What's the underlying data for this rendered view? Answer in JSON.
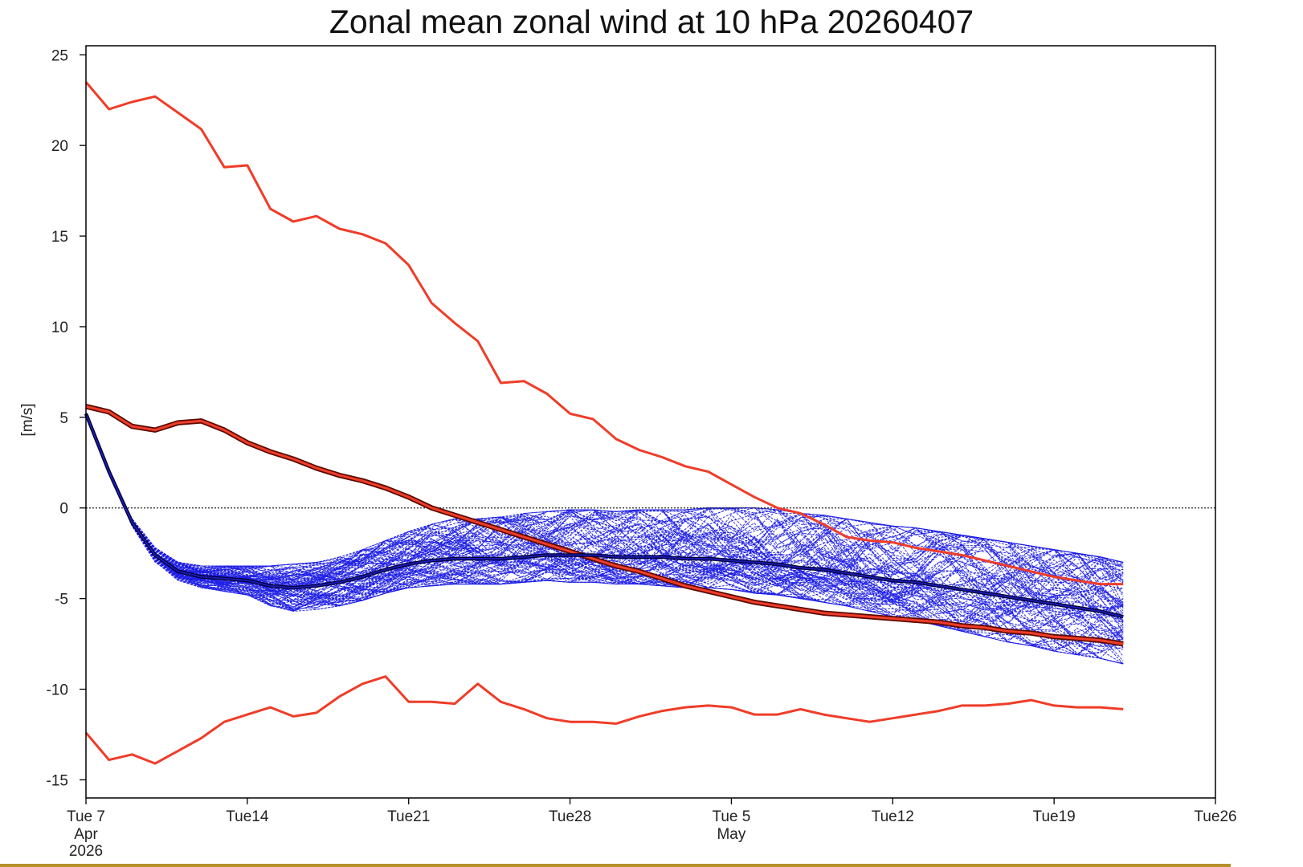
{
  "chart_data": {
    "type": "line",
    "title": "Zonal mean zonal wind at 10 hPa 20260407",
    "xlabel": "",
    "ylabel": "[m/s]",
    "ylim": [
      -16,
      25.5
    ],
    "xlim": [
      0,
      49
    ],
    "yticks": [
      25,
      20,
      15,
      10,
      5,
      0,
      -5,
      -10,
      -15
    ],
    "xticks": [
      {
        "day": 0,
        "label": "Tue 7",
        "sub1": "Apr",
        "sub2": "2026"
      },
      {
        "day": 7,
        "label": "Tue14",
        "sub1": "",
        "sub2": ""
      },
      {
        "day": 14,
        "label": "Tue21",
        "sub1": "",
        "sub2": ""
      },
      {
        "day": 21,
        "label": "Tue28",
        "sub1": "",
        "sub2": ""
      },
      {
        "day": 28,
        "label": "Tue 5",
        "sub1": "May",
        "sub2": ""
      },
      {
        "day": 35,
        "label": "Tue12",
        "sub1": "",
        "sub2": ""
      },
      {
        "day": 42,
        "label": "Tue19",
        "sub1": "",
        "sub2": ""
      },
      {
        "day": 49,
        "label": "Tue26",
        "sub1": "",
        "sub2": ""
      }
    ],
    "zero_line": 0,
    "series": [
      {
        "role": "climatology-max",
        "color": "#f03c28",
        "x": [
          0,
          1,
          2,
          3,
          4,
          5,
          6,
          7,
          8,
          9,
          10,
          11,
          12,
          13,
          14,
          15,
          16,
          17,
          18,
          19,
          20,
          21,
          22,
          23,
          24,
          25,
          26,
          27,
          28,
          29,
          30,
          31,
          32,
          33,
          34,
          35,
          36,
          37,
          38,
          39,
          40,
          41,
          42,
          43,
          44,
          45
        ],
        "values": [
          23.5,
          22,
          22.4,
          22.7,
          21.8,
          20.9,
          18.8,
          18.9,
          16.5,
          15.8,
          16.1,
          15.4,
          15.1,
          14.6,
          13.4,
          11.3,
          10.2,
          9.2,
          6.9,
          7.0,
          6.3,
          5.2,
          4.9,
          3.8,
          3.2,
          2.8,
          2.3,
          2.0,
          1.3,
          0.6,
          0.0,
          -0.3,
          -0.9,
          -1.6,
          -1.8,
          -1.9,
          -2.2,
          -2.4,
          -2.6,
          -2.9,
          -3.2,
          -3.5,
          -3.8,
          -4.0,
          -4.2,
          -4.2
        ]
      },
      {
        "role": "climatology-min",
        "color": "#f03c28",
        "x": [
          0,
          1,
          2,
          3,
          4,
          5,
          6,
          7,
          8,
          9,
          10,
          11,
          12,
          13,
          14,
          15,
          16,
          17,
          18,
          19,
          20,
          21,
          22,
          23,
          24,
          25,
          26,
          27,
          28,
          29,
          30,
          31,
          32,
          33,
          34,
          35,
          36,
          37,
          38,
          39,
          40,
          41,
          42,
          43,
          44,
          45
        ],
        "values": [
          -12.4,
          -13.9,
          -13.6,
          -14.1,
          -13.4,
          -12.7,
          -11.8,
          -11.4,
          -11.0,
          -11.5,
          -11.3,
          -10.4,
          -9.7,
          -9.3,
          -10.7,
          -10.7,
          -10.8,
          -9.7,
          -10.7,
          -11.1,
          -11.6,
          -11.8,
          -11.8,
          -11.9,
          -11.5,
          -11.2,
          -11.0,
          -10.9,
          -11.0,
          -11.4,
          -11.4,
          -11.1,
          -11.4,
          -11.6,
          -11.8,
          -11.6,
          -11.4,
          -11.2,
          -10.9,
          -10.9,
          -10.8,
          -10.6,
          -10.9,
          -11.0,
          -11.0,
          -11.1
        ]
      },
      {
        "role": "climatology-mean",
        "color": "#c81e0a",
        "x": [
          0,
          1,
          2,
          3,
          4,
          5,
          6,
          7,
          8,
          9,
          10,
          11,
          12,
          13,
          14,
          15,
          16,
          17,
          18,
          19,
          20,
          21,
          22,
          23,
          24,
          25,
          26,
          27,
          28,
          29,
          30,
          31,
          32,
          33,
          34,
          35,
          36,
          37,
          38,
          39,
          40,
          41,
          42,
          43,
          44,
          45
        ],
        "values": [
          5.6,
          5.3,
          4.5,
          4.3,
          4.7,
          4.8,
          4.3,
          3.6,
          3.1,
          2.7,
          2.2,
          1.8,
          1.5,
          1.1,
          0.6,
          0.0,
          -0.4,
          -0.8,
          -1.2,
          -1.6,
          -2.0,
          -2.4,
          -2.8,
          -3.2,
          -3.5,
          -3.9,
          -4.3,
          -4.6,
          -4.9,
          -5.2,
          -5.4,
          -5.6,
          -5.8,
          -5.9,
          -6.0,
          -6.1,
          -6.2,
          -6.3,
          -6.5,
          -6.6,
          -6.8,
          -6.9,
          -7.1,
          -7.2,
          -7.3,
          -7.5
        ]
      },
      {
        "role": "ensemble-mean",
        "color": "#000060",
        "x": [
          0,
          1,
          2,
          3,
          4,
          5,
          6,
          7,
          8,
          9,
          10,
          11,
          12,
          13,
          14,
          15,
          16,
          17,
          18,
          19,
          20,
          21,
          22,
          23,
          24,
          25,
          26,
          27,
          28,
          29,
          30,
          31,
          32,
          33,
          34,
          35,
          36,
          37,
          38,
          39,
          40,
          41,
          42,
          43,
          44,
          45
        ],
        "values": [
          5.2,
          2.0,
          -0.8,
          -2.6,
          -3.5,
          -3.8,
          -3.9,
          -4.0,
          -4.3,
          -4.4,
          -4.3,
          -4.1,
          -3.8,
          -3.4,
          -3.1,
          -2.9,
          -2.8,
          -2.8,
          -2.8,
          -2.7,
          -2.6,
          -2.6,
          -2.6,
          -2.7,
          -2.7,
          -2.7,
          -2.8,
          -2.8,
          -2.9,
          -3.0,
          -3.1,
          -3.3,
          -3.4,
          -3.6,
          -3.8,
          -4.0,
          -4.1,
          -4.3,
          -4.5,
          -4.7,
          -4.9,
          -5.1,
          -5.3,
          -5.5,
          -5.7,
          -6.0
        ]
      }
    ],
    "ensemble": {
      "color": "#1e1ee6",
      "members": 100,
      "x_end": 45,
      "spread_low": [
        0,
        0,
        0.2,
        0.4,
        0.5,
        0.6,
        0.7,
        0.8,
        1.1,
        1.3,
        1.3,
        1.3,
        1.3,
        1.3,
        1.3,
        1.4,
        1.4,
        1.4,
        1.4,
        1.4,
        1.4,
        1.5,
        1.5,
        1.5,
        1.5,
        1.6,
        1.6,
        1.6,
        1.6,
        1.7,
        1.7,
        1.7,
        1.8,
        1.8,
        1.9,
        2.0,
        2.1,
        2.2,
        2.3,
        2.4,
        2.5,
        2.5,
        2.6,
        2.6,
        2.6,
        2.6
      ],
      "spread_high": [
        0,
        0,
        0.2,
        0.4,
        0.5,
        0.6,
        0.7,
        0.8,
        1.1,
        1.3,
        1.3,
        1.4,
        1.5,
        1.6,
        1.8,
        2.0,
        2.2,
        2.2,
        2.3,
        2.4,
        2.4,
        2.5,
        2.5,
        2.5,
        2.6,
        2.6,
        2.7,
        2.8,
        2.9,
        3.0,
        3.0,
        3.0,
        3.0,
        3.0,
        3.0,
        3.0,
        3.0,
        3.0,
        3.0,
        3.0,
        3.0,
        3.0,
        3.0,
        3.0,
        3.0,
        3.0
      ]
    }
  }
}
